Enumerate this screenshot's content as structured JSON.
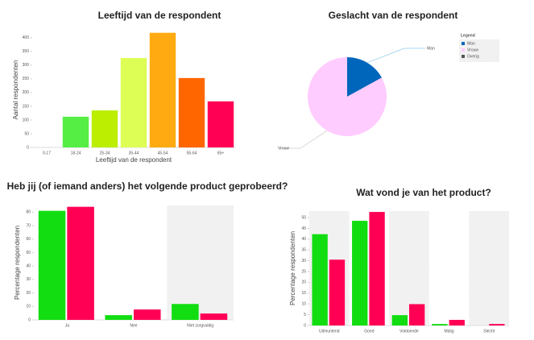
{
  "chart_data": [
    {
      "type": "bar",
      "title": "Leeftijd van de respondent",
      "xlabel": "Leeftijd van de respondent",
      "ylabel": "Aantal respondenten",
      "categories": [
        "0-17",
        "18-24",
        "25-34",
        "35-44",
        "45-54",
        "55-64",
        "65+"
      ],
      "values": [
        0,
        112,
        135,
        326,
        418,
        253,
        168
      ],
      "colors": [
        "#cccccc",
        "#55ee44",
        "#bbee00",
        "#ddff55",
        "#ffaa11",
        "#ff6600",
        "#ff0055"
      ],
      "ylim": [
        0,
        420
      ],
      "yticks": [
        0,
        50,
        100,
        150,
        200,
        250,
        300,
        350,
        400
      ],
      "grid": false
    },
    {
      "type": "pie",
      "title": "Geslacht van de respondent",
      "legend_title": "Legend",
      "categories": [
        "Man",
        "Vrouw",
        "Overig"
      ],
      "values": [
        17,
        83,
        0
      ],
      "colors": [
        "#0066bb",
        "#ffccff",
        "#555555"
      ]
    },
    {
      "type": "bar",
      "title": "Heb jij (of iemand anders) het volgende product geprobeerd?",
      "ylabel": "Percentage respondenten",
      "categories": [
        "Ja",
        "Nee",
        "Niet zorgvuldig"
      ],
      "series": [
        {
          "color": "#11dd11",
          "values": [
            81,
            3.5,
            11.8
          ]
        },
        {
          "color": "#ff0055",
          "values": [
            84,
            7.7,
            4.7
          ]
        }
      ],
      "ylim": [
        0,
        85
      ],
      "yticks": [
        0,
        10,
        20,
        30,
        40,
        50,
        60,
        70,
        80
      ],
      "grid": false
    },
    {
      "type": "bar",
      "title": "Wat vond je van het product?",
      "ylabel": "Percentage respondenten",
      "categories": [
        "Uitmuntend",
        "Goed",
        "Voldoende",
        "Matig",
        "Slecht"
      ],
      "series": [
        {
          "color": "#11dd11",
          "values": [
            42.3,
            48.5,
            4.8,
            0.7,
            0
          ]
        },
        {
          "color": "#ff0055",
          "values": [
            30.5,
            52.6,
            9.9,
            2.6,
            0.7
          ]
        }
      ],
      "ylim": [
        0,
        53
      ],
      "yticks": [
        0,
        5,
        10,
        15,
        20,
        25,
        30,
        35,
        40,
        45,
        50
      ],
      "grid": false
    }
  ]
}
